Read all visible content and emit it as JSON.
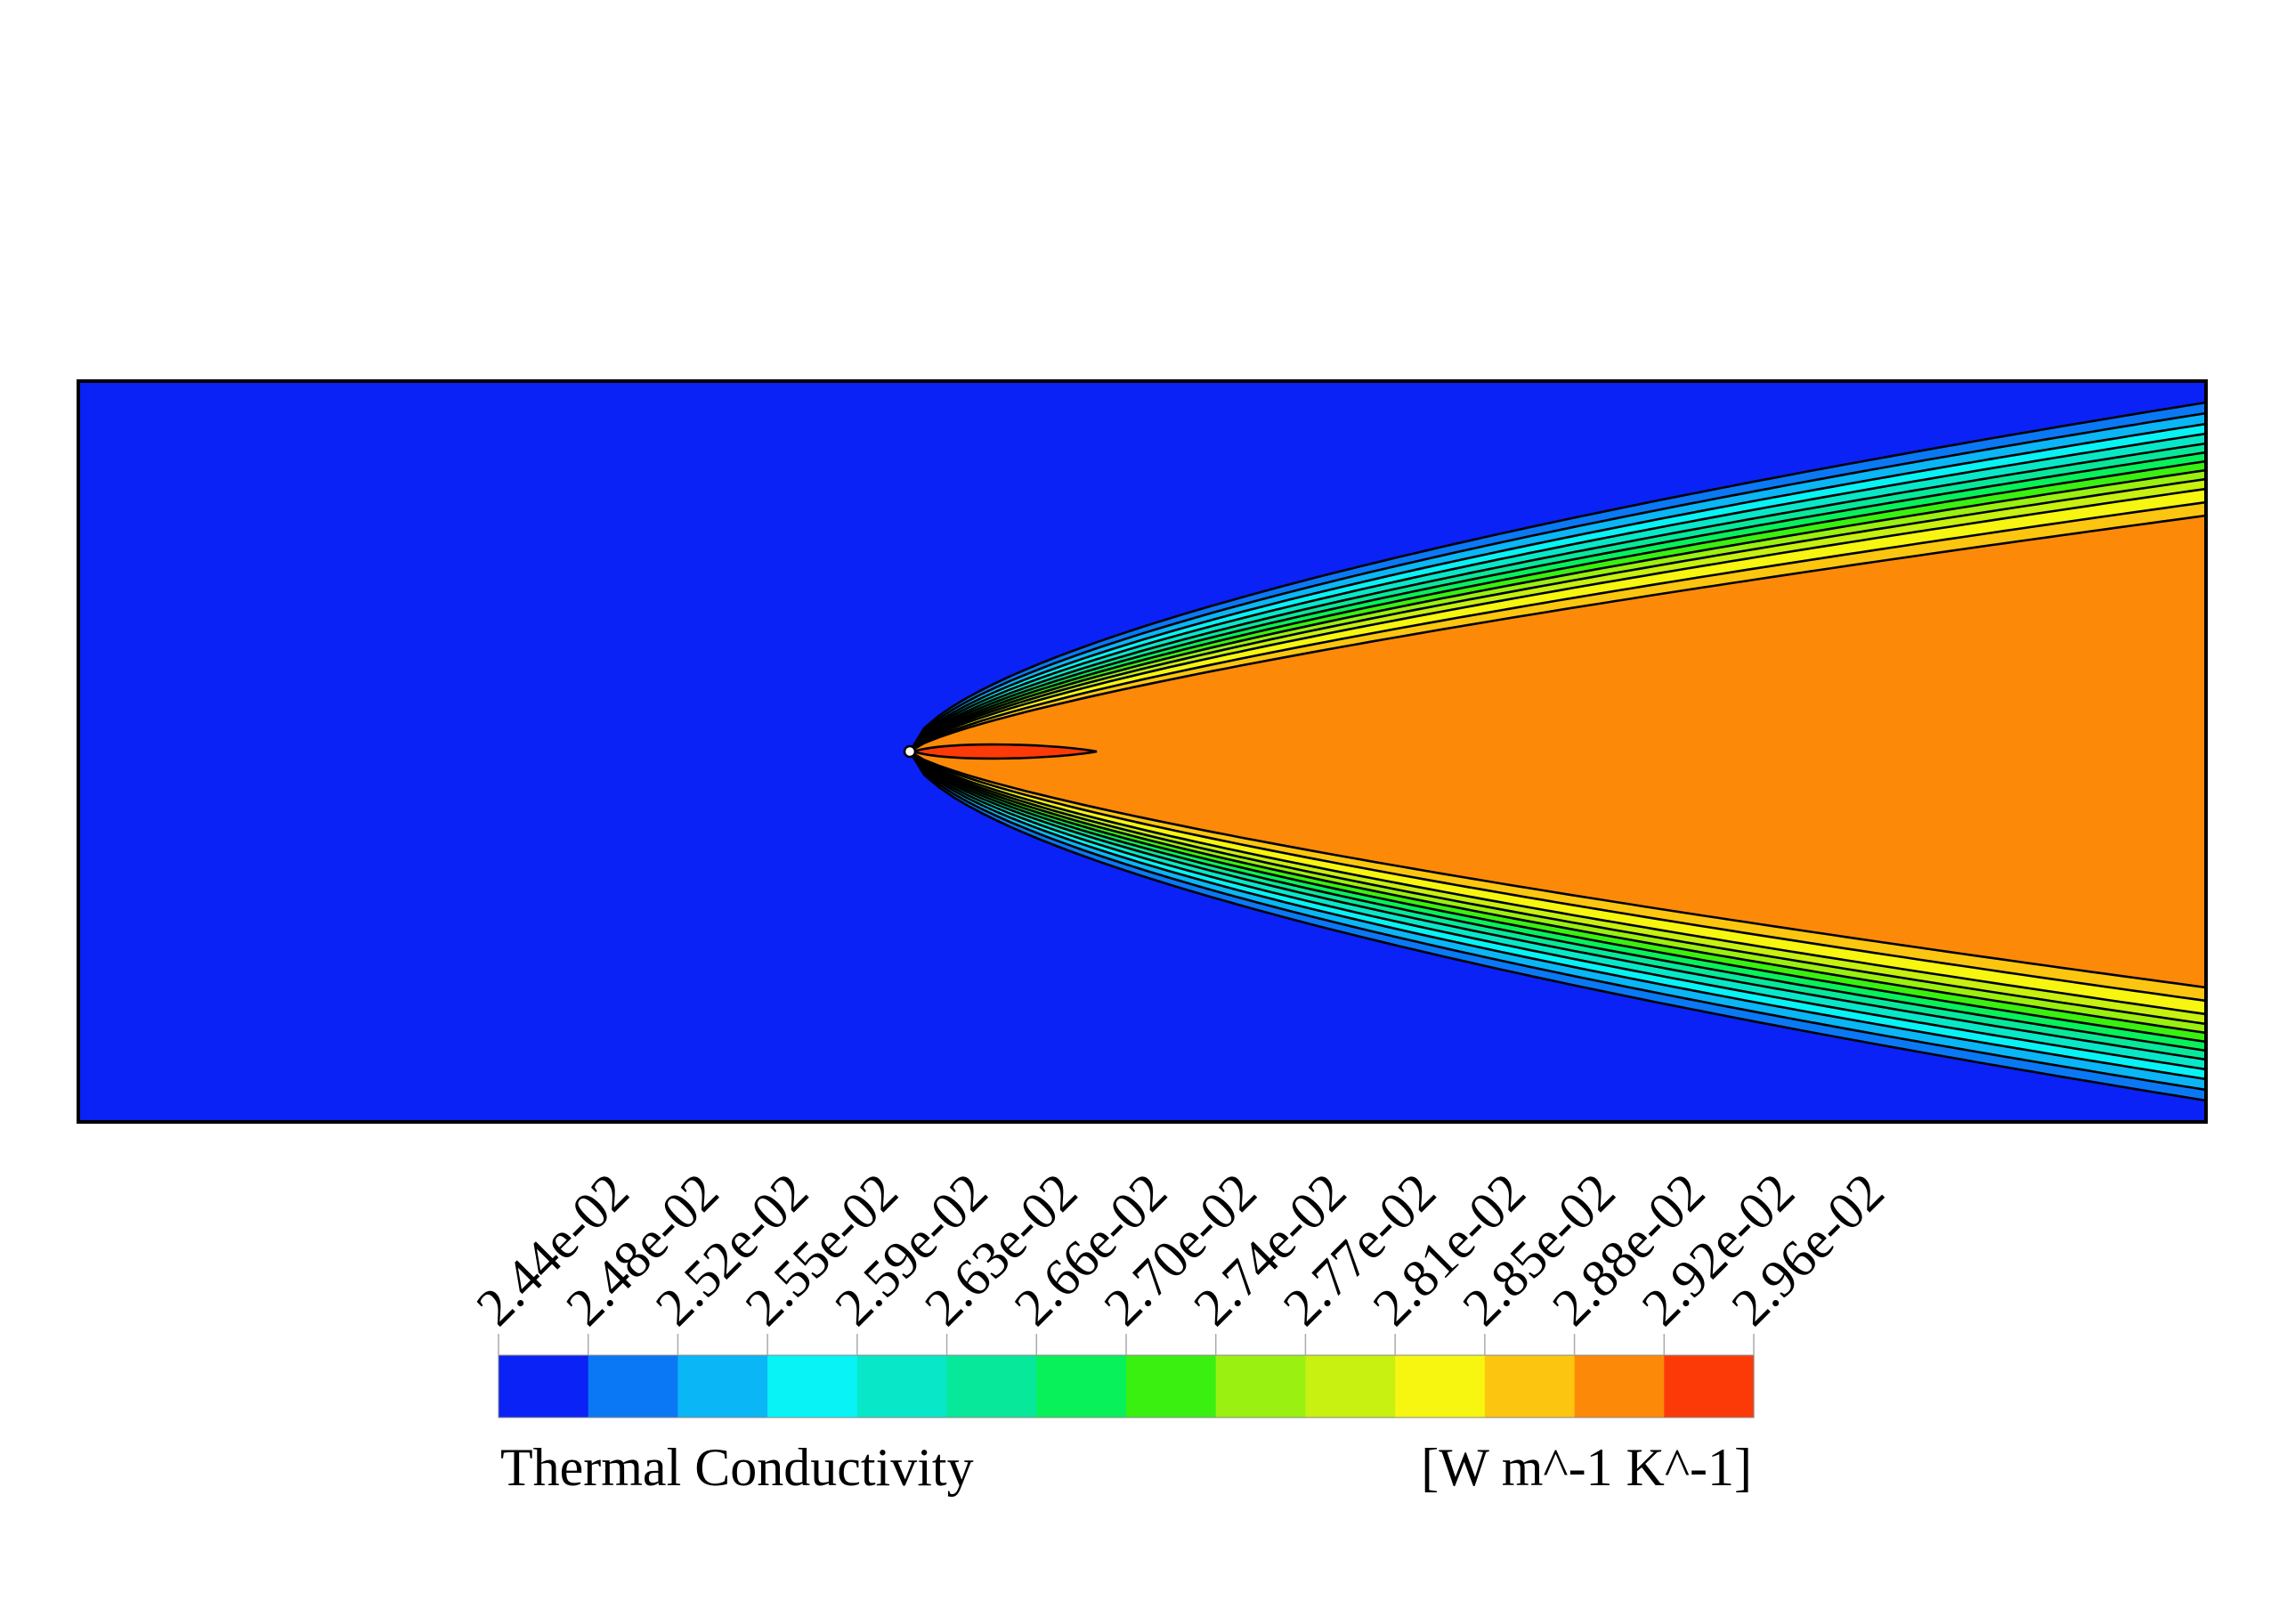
{
  "chart_data": {
    "type": "heatmap",
    "title": "",
    "quantity": "Thermal Conductivity",
    "units": "[W m^-1 K^-1]",
    "levels": [
      "2.44e-02",
      "2.48e-02",
      "2.52e-02",
      "2.55e-02",
      "2.59e-02",
      "2.63e-02",
      "2.66e-02",
      "2.70e-02",
      "2.74e-02",
      "2.77e-02",
      "2.81e-02",
      "2.85e-02",
      "2.88e-02",
      "2.92e-02",
      "2.96e-02"
    ],
    "colors": [
      "#0a22f5",
      "#0a78f5",
      "#0ab6f5",
      "#08f3f5",
      "#08e8c8",
      "#08e89a",
      "#08f05a",
      "#3af010",
      "#9af010",
      "#c8f010",
      "#f6f610",
      "#fcc610",
      "#fc8a08",
      "#fc3a08"
    ],
    "colorbar_position": "bottom",
    "contour_lines": true,
    "background_value_color": "#0a22f5",
    "core_value_color": "#fc8a08",
    "peak_value_color": "#fc3a08"
  }
}
